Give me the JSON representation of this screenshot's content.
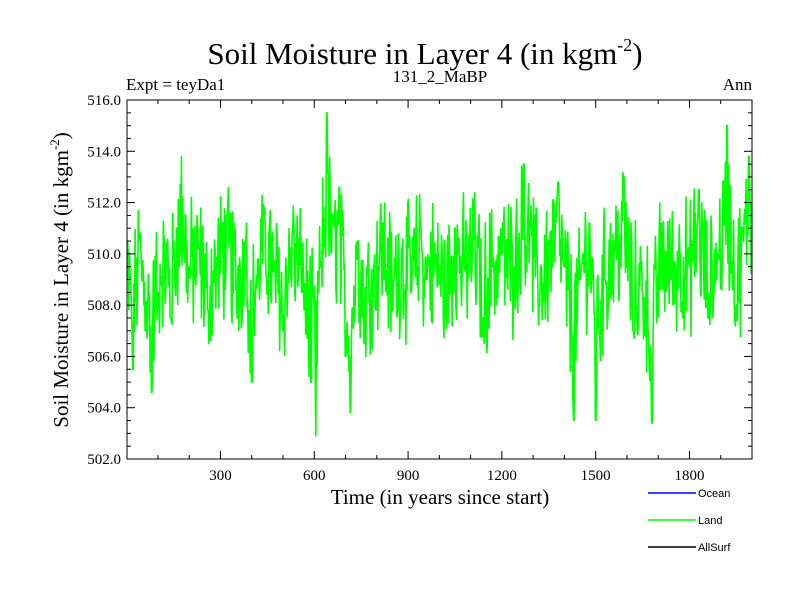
{
  "chart_data": {
    "type": "line",
    "title": "Soil Moisture in Layer 4 (in kgm",
    "title_sup": "-2",
    "title_end": ")",
    "left_label": "Expt = teyDa1",
    "center_label": "131_2_MaBP",
    "right_label": "Ann",
    "xlabel": "Time (in years since start)",
    "ylabel": "Soil Moisture in Layer 4 (in kgm",
    "ylabel_sup": "-2",
    "ylabel_end": ")",
    "xlim": [
      1,
      2000
    ],
    "ylim": [
      502.0,
      516.0
    ],
    "xticks": [
      300,
      600,
      900,
      1200,
      1500,
      1800
    ],
    "xtick_labels": [
      "300",
      "600",
      "900",
      "1200",
      "1500",
      "1800"
    ],
    "yticks": [
      502.0,
      504.0,
      506.0,
      508.0,
      510.0,
      512.0,
      514.0,
      516.0
    ],
    "ytick_labels": [
      "502.0",
      "504.0",
      "506.0",
      "508.0",
      "510.0",
      "512.0",
      "514.0",
      "516.0"
    ],
    "legend_position": "bottom-right",
    "series": [
      {
        "name": "Ocean",
        "color": "#0000ff",
        "values": []
      },
      {
        "name": "Land",
        "color": "#00ff00",
        "mean": 509.4,
        "min": 502.9,
        "max": 515.5,
        "values": [
          [
            1,
            509.0
          ],
          [
            20,
            505.5
          ],
          [
            40,
            510.5
          ],
          [
            60,
            507.0
          ],
          [
            80,
            504.6
          ],
          [
            100,
            508.5
          ],
          [
            120,
            510.6
          ],
          [
            140,
            507.5
          ],
          [
            160,
            511.0
          ],
          [
            175,
            513.8
          ],
          [
            200,
            509.5
          ],
          [
            230,
            510.2
          ],
          [
            260,
            507.8
          ],
          [
            290,
            509.5
          ],
          [
            320,
            511.5
          ],
          [
            350,
            508.6
          ],
          [
            380,
            510.4
          ],
          [
            400,
            505.0
          ],
          [
            420,
            509.8
          ],
          [
            440,
            511.8
          ],
          [
            470,
            509.3
          ],
          [
            500,
            507.0
          ],
          [
            530,
            510.8
          ],
          [
            560,
            508.5
          ],
          [
            590,
            505.0
          ],
          [
            605,
            502.9
          ],
          [
            620,
            509.5
          ],
          [
            640,
            515.5
          ],
          [
            660,
            511.5
          ],
          [
            680,
            512.6
          ],
          [
            700,
            506.0
          ],
          [
            715,
            503.8
          ],
          [
            740,
            510.5
          ],
          [
            760,
            506.5
          ],
          [
            790,
            509.5
          ],
          [
            820,
            511.2
          ],
          [
            850,
            507.8
          ],
          [
            880,
            510.2
          ],
          [
            910,
            508.5
          ],
          [
            940,
            511.0
          ],
          [
            960,
            509.0
          ],
          [
            990,
            510.0
          ],
          [
            1020,
            507.5
          ],
          [
            1050,
            511.0
          ],
          [
            1080,
            509.5
          ],
          [
            1110,
            510.6
          ],
          [
            1140,
            507.5
          ],
          [
            1170,
            509.5
          ],
          [
            1200,
            510.0
          ],
          [
            1240,
            509.5
          ],
          [
            1270,
            513.5
          ],
          [
            1290,
            511.0
          ],
          [
            1320,
            508.0
          ],
          [
            1350,
            510.5
          ],
          [
            1380,
            512.8
          ],
          [
            1400,
            509.5
          ],
          [
            1430,
            503.5
          ],
          [
            1450,
            509.0
          ],
          [
            1480,
            511.2
          ],
          [
            1500,
            503.5
          ],
          [
            1530,
            509.0
          ],
          [
            1560,
            510.5
          ],
          [
            1590,
            513.0
          ],
          [
            1620,
            507.0
          ],
          [
            1650,
            508.5
          ],
          [
            1680,
            503.4
          ],
          [
            1710,
            511.2
          ],
          [
            1740,
            509.0
          ],
          [
            1770,
            510.0
          ],
          [
            1800,
            509.5
          ],
          [
            1830,
            512.5
          ],
          [
            1860,
            507.5
          ],
          [
            1890,
            510.0
          ],
          [
            1920,
            515.0
          ],
          [
            1950,
            508.0
          ],
          [
            1970,
            511.0
          ],
          [
            1990,
            513.8
          ],
          [
            2000,
            512.0
          ]
        ]
      },
      {
        "name": "AllSurf",
        "color": "#000000",
        "values": []
      }
    ]
  }
}
